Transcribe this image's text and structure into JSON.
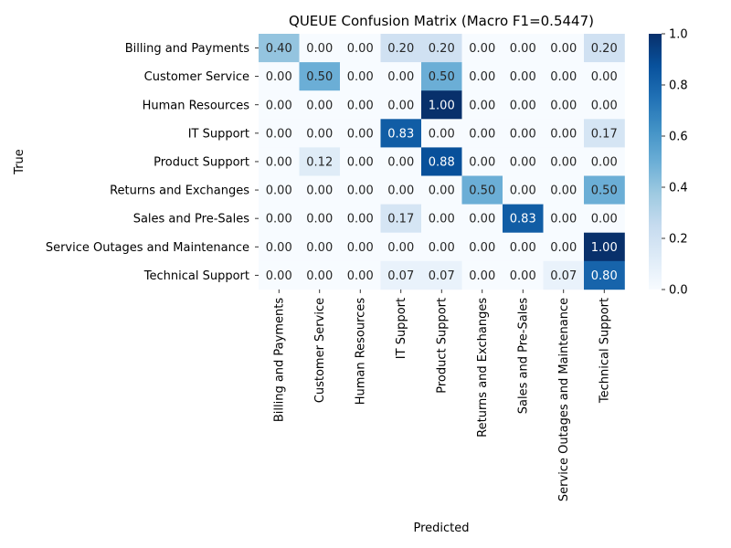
{
  "chart_data": {
    "type": "heatmap",
    "title": "QUEUE Confusion Matrix (Macro F1=0.5447)",
    "xlabel": "Predicted",
    "ylabel": "True",
    "x_categories": [
      "Billing and Payments",
      "Customer Service",
      "Human Resources",
      "IT Support",
      "Product Support",
      "Returns and Exchanges",
      "Sales and Pre-Sales",
      "Service Outages and Maintenance",
      "Technical Support"
    ],
    "y_categories": [
      "Billing and Payments",
      "Customer Service",
      "Human Resources",
      "IT Support",
      "Product Support",
      "Returns and Exchanges",
      "Sales and Pre-Sales",
      "Service Outages and Maintenance",
      "Technical Support"
    ],
    "values": [
      [
        0.4,
        0.0,
        0.0,
        0.2,
        0.2,
        0.0,
        0.0,
        0.0,
        0.2
      ],
      [
        0.0,
        0.5,
        0.0,
        0.0,
        0.5,
        0.0,
        0.0,
        0.0,
        0.0
      ],
      [
        0.0,
        0.0,
        0.0,
        0.0,
        1.0,
        0.0,
        0.0,
        0.0,
        0.0
      ],
      [
        0.0,
        0.0,
        0.0,
        0.83,
        0.0,
        0.0,
        0.0,
        0.0,
        0.17
      ],
      [
        0.0,
        0.12,
        0.0,
        0.0,
        0.88,
        0.0,
        0.0,
        0.0,
        0.0
      ],
      [
        0.0,
        0.0,
        0.0,
        0.0,
        0.0,
        0.5,
        0.0,
        0.0,
        0.5
      ],
      [
        0.0,
        0.0,
        0.0,
        0.17,
        0.0,
        0.0,
        0.83,
        0.0,
        0.0
      ],
      [
        0.0,
        0.0,
        0.0,
        0.0,
        0.0,
        0.0,
        0.0,
        0.0,
        1.0
      ],
      [
        0.0,
        0.0,
        0.0,
        0.07,
        0.07,
        0.0,
        0.0,
        0.07,
        0.8
      ]
    ],
    "colorbar": {
      "range": [
        0.0,
        1.0
      ],
      "ticks": [
        "0.0",
        "0.2",
        "0.4",
        "0.6",
        "0.8",
        "1.0"
      ],
      "colormap": "Blues",
      "low_color": "#f7fbff",
      "high_color": "#08306b"
    },
    "annotation_format": "0.00",
    "grid": false
  }
}
